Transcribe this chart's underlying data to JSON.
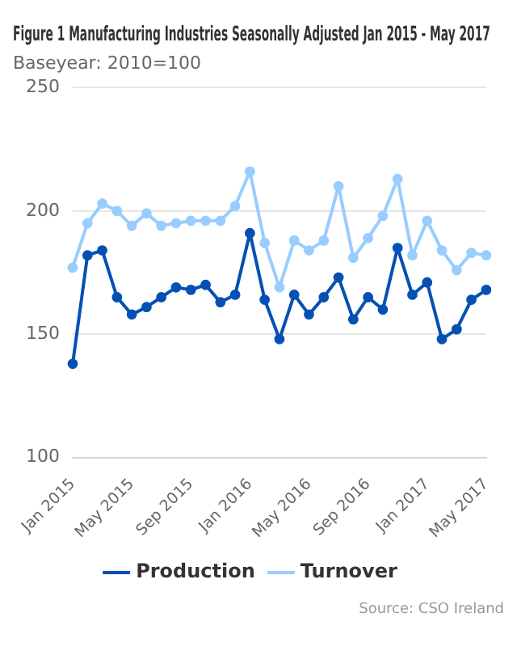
{
  "chart_data": {
    "type": "line",
    "title": "Figure 1 Manufacturing Industries Seasonally Adjusted Jan 2015 - May 2017",
    "subtitle": "Baseyear: 2010=100",
    "categories": [
      "Jan 2015",
      null,
      null,
      null,
      "May 2015",
      null,
      null,
      null,
      "Sep 2015",
      null,
      null,
      null,
      "Jan 2016",
      null,
      null,
      null,
      "May 2016",
      null,
      null,
      null,
      "Sep 2016",
      null,
      null,
      null,
      "Jan 2017",
      null,
      null,
      null,
      "May 2017"
    ],
    "series": [
      {
        "name": "Production",
        "color": "#0550b4",
        "values": [
          138,
          182,
          184,
          165,
          158,
          161,
          165,
          169,
          168,
          170,
          163,
          166,
          191,
          164,
          148,
          166,
          158,
          165,
          173,
          156,
          165,
          160,
          185,
          166,
          171,
          148,
          152,
          164,
          168
        ]
      },
      {
        "name": "Turnover",
        "color": "#99ccff",
        "values": [
          177,
          195,
          203,
          200,
          194,
          199,
          194,
          195,
          196,
          196,
          196,
          202,
          216,
          187,
          169,
          188,
          184,
          188,
          210,
          181,
          189,
          198,
          213,
          182,
          196,
          184,
          176,
          183,
          182
        ]
      }
    ],
    "ylim": [
      100,
      250
    ],
    "yticks": [
      100,
      150,
      200,
      250
    ],
    "grid": "y",
    "legend": "bottom",
    "marker": "circle",
    "line_style": "solid",
    "annotations": [
      "Source: CSO Ireland"
    ]
  }
}
